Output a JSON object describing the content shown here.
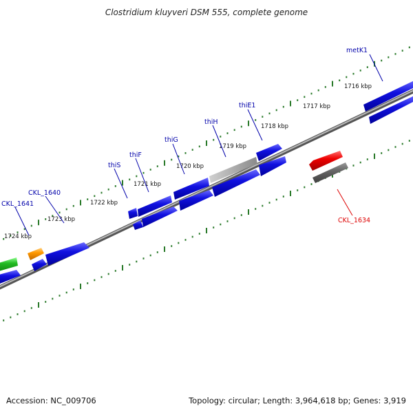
{
  "title": "Clostridium kluyveri DSM 555, complete genome",
  "footer": {
    "accession": "Accession: NC_009706",
    "summary": "Topology: circular; Length: 3,964,618 bp; Genes: 3,919"
  },
  "colors": {
    "background": "#ffffff",
    "backbone": "#888888",
    "tick": "#2a7a2a",
    "gene_forward": "#1010e0",
    "gene_reverse": "#1010e0",
    "gene_highlight": "#e00000",
    "gene_gray": "#666666",
    "gene_orange": "#ff9900",
    "gene_green": "#22bb22",
    "label_default": "#0000aa",
    "label_highlight": "#dd0000"
  },
  "scale_labels": [
    "1716 kbp",
    "1717 kbp",
    "1718 kbp",
    "1719 kbp",
    "1720 kbp",
    "1721 kbp",
    "1722 kbp",
    "1723 kbp",
    "1724 kbp"
  ],
  "gene_labels": [
    {
      "text": "metK1",
      "color": "label_default"
    },
    {
      "text": "thiE1",
      "color": "label_default"
    },
    {
      "text": "thiH",
      "color": "label_default"
    },
    {
      "text": "thiG",
      "color": "label_default"
    },
    {
      "text": "thiF",
      "color": "label_default"
    },
    {
      "text": "thiS",
      "color": "label_default"
    },
    {
      "text": "CKL_1640",
      "color": "label_default"
    },
    {
      "text": "CKL_1641",
      "color": "label_default"
    },
    {
      "text": "CKL_1634",
      "color": "label_highlight"
    }
  ]
}
